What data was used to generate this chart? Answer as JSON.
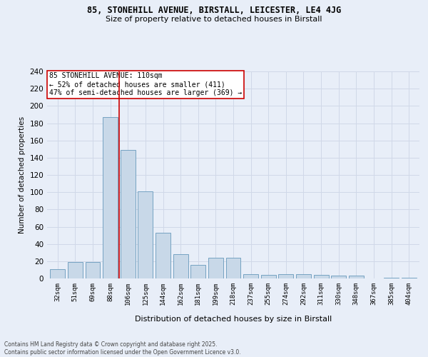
{
  "title1": "85, STONEHILL AVENUE, BIRSTALL, LEICESTER, LE4 4JG",
  "title2": "Size of property relative to detached houses in Birstall",
  "xlabel": "Distribution of detached houses by size in Birstall",
  "ylabel": "Number of detached properties",
  "categories": [
    "32sqm",
    "51sqm",
    "69sqm",
    "88sqm",
    "106sqm",
    "125sqm",
    "144sqm",
    "162sqm",
    "181sqm",
    "199sqm",
    "218sqm",
    "237sqm",
    "255sqm",
    "274sqm",
    "292sqm",
    "311sqm",
    "330sqm",
    "348sqm",
    "367sqm",
    "385sqm",
    "404sqm"
  ],
  "values": [
    11,
    19,
    19,
    187,
    149,
    101,
    53,
    28,
    16,
    24,
    24,
    5,
    4,
    5,
    5,
    4,
    3,
    3,
    0,
    1,
    1
  ],
  "bar_color": "#c8d8e8",
  "bar_edge_color": "#6699bb",
  "vline_x": 3.5,
  "vline_color": "#cc0000",
  "annotation_text": "85 STONEHILL AVENUE: 110sqm\n← 52% of detached houses are smaller (411)\n47% of semi-detached houses are larger (369) →",
  "annotation_box_color": "#ffffff",
  "annotation_box_edge": "#cc0000",
  "grid_color": "#d0d8e8",
  "bg_color": "#e8eef8",
  "footnote": "Contains HM Land Registry data © Crown copyright and database right 2025.\nContains public sector information licensed under the Open Government Licence v3.0.",
  "ylim": [
    0,
    240
  ],
  "yticks": [
    0,
    20,
    40,
    60,
    80,
    100,
    120,
    140,
    160,
    180,
    200,
    220,
    240
  ]
}
